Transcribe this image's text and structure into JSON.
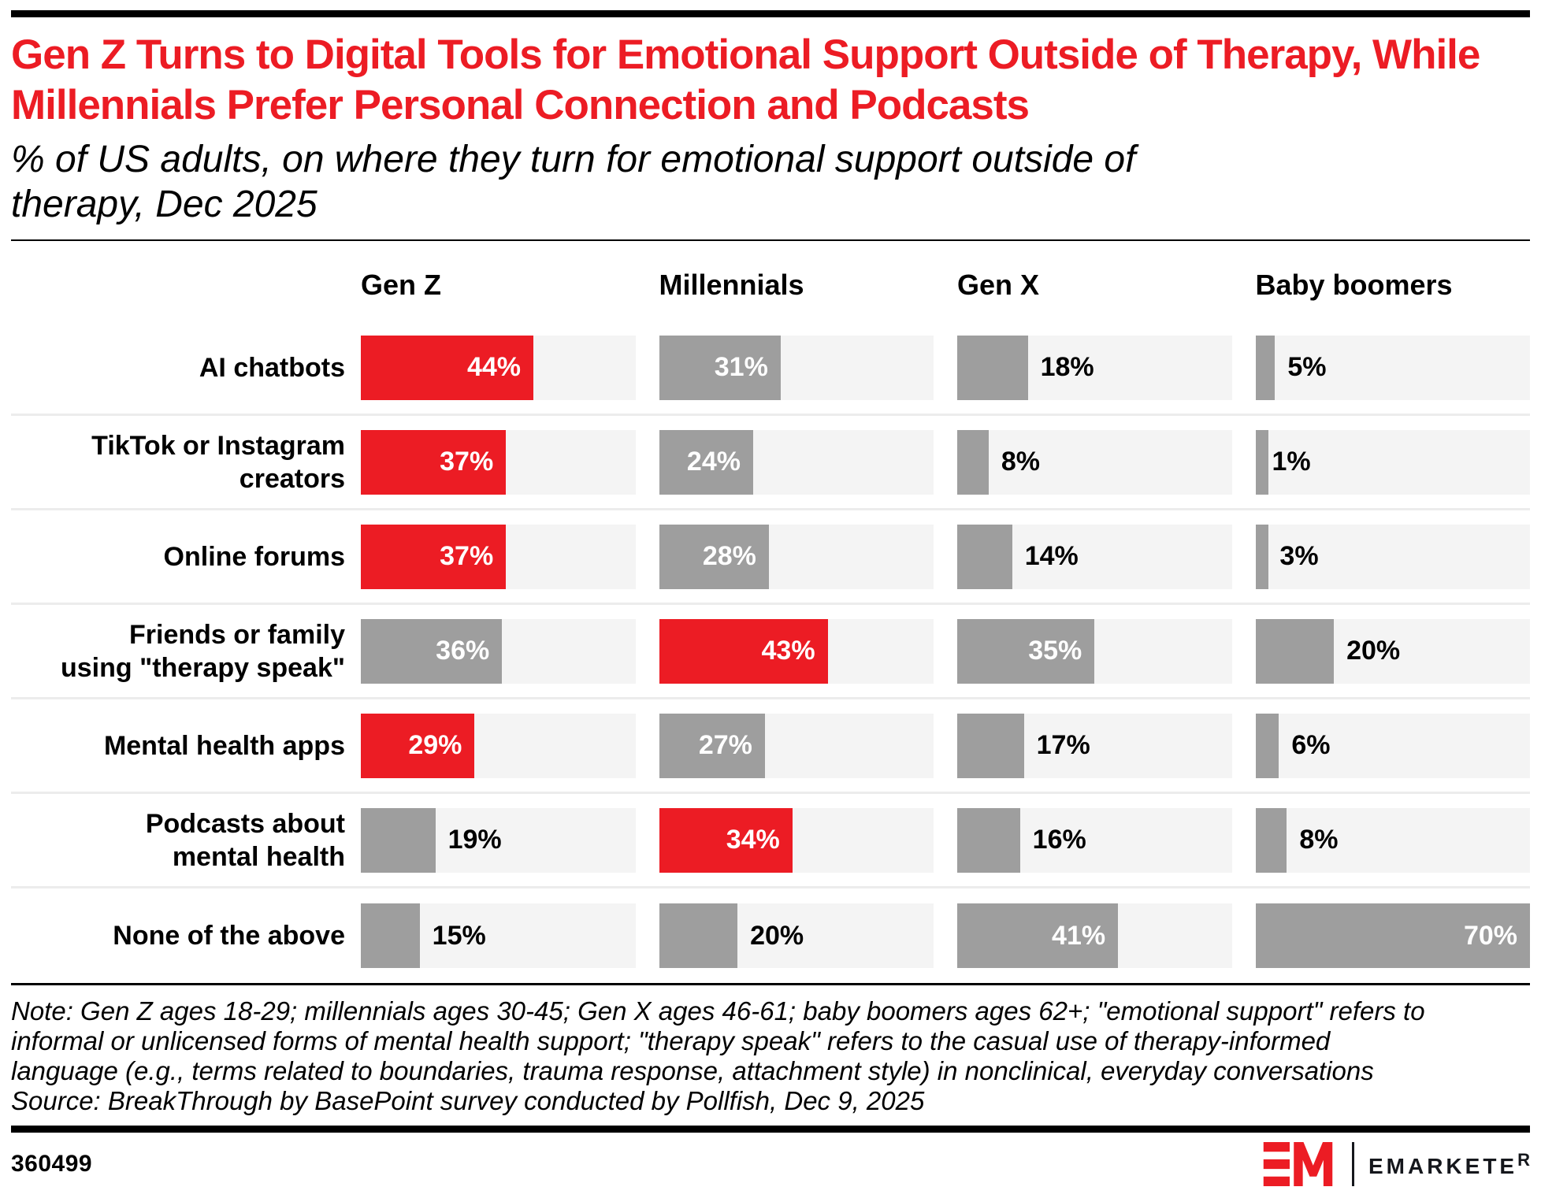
{
  "page": {
    "subtitle_lines": [
      "% of US adults, on where they turn for emotional support outside of",
      "therapy, Dec 2025"
    ],
    "note_lines": [
      "Note: Gen Z ages 18-29; millennials ages 30-45; Gen X ages 46-61; baby boomers ages 62+; \"emotional support\" refers to",
      "informal or unlicensed forms of mental health support; \"therapy speak\" refers to the casual use of therapy-informed",
      "language (e.g., terms related to boundaries, trauma response, attachment style) in nonclinical, everyday conversations"
    ],
    "source": "Source: BreakThrough by BasePoint survey conducted by Pollfish, Dec 9, 2025",
    "footer_id": "360499",
    "brand": {
      "mark_letters": "EM",
      "name": "EMARKETER"
    }
  },
  "colors": {
    "accent_red": "#EC1C24",
    "bar_gray": "#9E9E9E",
    "track_gray": "#F4F4F4",
    "divider_gray": "#ECECEC"
  },
  "chart_data": {
    "type": "bar",
    "orientation": "horizontal",
    "title": "Gen Z Turns to Digital Tools for Emotional Support Outside of Therapy, While Millennials Prefer Personal Connection and Podcasts",
    "subtitle": "% of US adults, on where they turn for emotional support outside of therapy, Dec 2025",
    "unit": "%",
    "axis_max": 70,
    "grid": false,
    "legend_position": "none",
    "columns": [
      "Gen Z",
      "Millennials",
      "Gen X",
      "Baby boomers"
    ],
    "rows": [
      {
        "label": "AI chatbots",
        "label_lines": [
          "AI chatbots"
        ],
        "values": [
          44,
          31,
          18,
          5
        ],
        "highlight_index": 0
      },
      {
        "label": "TikTok or Instagram creators",
        "label_lines": [
          "TikTok or Instagram",
          "creators"
        ],
        "values": [
          37,
          24,
          8,
          1
        ],
        "highlight_index": 0
      },
      {
        "label": "Online forums",
        "label_lines": [
          "Online forums"
        ],
        "values": [
          37,
          28,
          14,
          3
        ],
        "highlight_index": 0
      },
      {
        "label": "Friends or family using \"therapy speak\"",
        "label_lines": [
          "Friends or family",
          "using \"therapy speak\""
        ],
        "values": [
          36,
          43,
          35,
          20
        ],
        "highlight_index": 1
      },
      {
        "label": "Mental health apps",
        "label_lines": [
          "Mental health apps"
        ],
        "values": [
          29,
          27,
          17,
          6
        ],
        "highlight_index": 0
      },
      {
        "label": "Podcasts about mental health",
        "label_lines": [
          "Podcasts about",
          "mental health"
        ],
        "values": [
          19,
          34,
          16,
          8
        ],
        "highlight_index": 1
      },
      {
        "label": "None of the above",
        "label_lines": [
          "None of the above"
        ],
        "values": [
          15,
          20,
          41,
          70
        ],
        "highlight_index": -1
      }
    ],
    "series": [
      {
        "name": "Gen Z",
        "values": [
          44,
          37,
          37,
          36,
          29,
          19,
          15
        ]
      },
      {
        "name": "Millennials",
        "values": [
          31,
          24,
          28,
          43,
          27,
          34,
          20
        ]
      },
      {
        "name": "Gen X",
        "values": [
          18,
          8,
          14,
          35,
          17,
          16,
          41
        ]
      },
      {
        "name": "Baby boomers",
        "values": [
          5,
          1,
          3,
          20,
          6,
          8,
          70
        ]
      }
    ]
  }
}
